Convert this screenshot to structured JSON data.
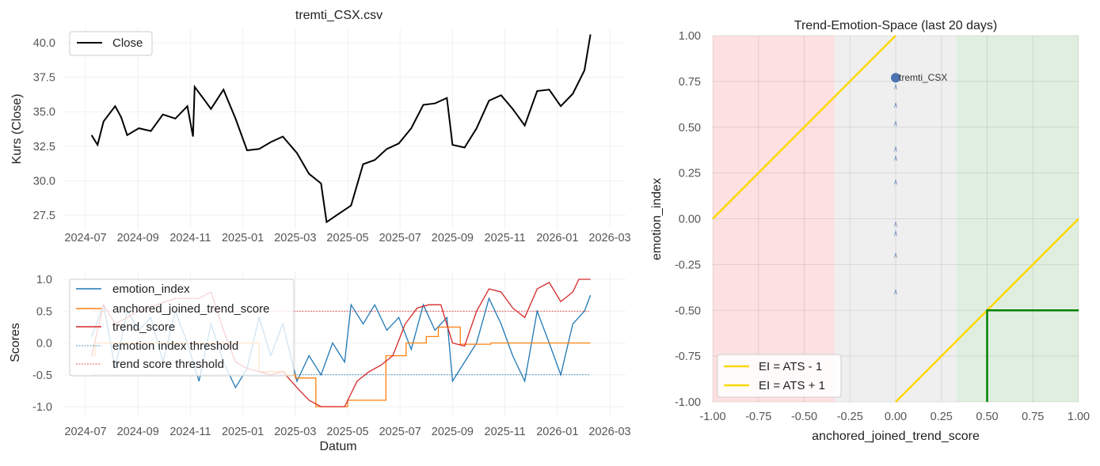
{
  "chart_data": [
    {
      "type": "line",
      "title": "tremti_CSX.csv",
      "xlabel": "",
      "ylabel": "Kurs (Close)",
      "ylim": [
        26.2,
        41.0
      ],
      "yticks": [
        "27.5",
        "30.0",
        "32.5",
        "35.0",
        "37.5",
        "40.0"
      ],
      "xticks": [
        "2024-07",
        "2024-09",
        "2024-11",
        "2025-01",
        "2025-03",
        "2025-05",
        "2025-07",
        "2025-09",
        "2025-11",
        "2026-01",
        "2026-03"
      ],
      "grid": true,
      "legend": "top-left",
      "series": [
        {
          "name": "Close",
          "color": "#000000",
          "x": [
            "2024-07-08",
            "2024-07-15",
            "2024-07-22",
            "2024-08-05",
            "2024-08-12",
            "2024-08-19",
            "2024-09-02",
            "2024-09-16",
            "2024-09-30",
            "2024-10-14",
            "2024-10-28",
            "2024-11-04",
            "2024-11-06",
            "2024-11-18",
            "2024-11-25",
            "2024-12-09",
            "2024-12-23",
            "2025-01-06",
            "2025-01-20",
            "2025-02-03",
            "2025-02-17",
            "2025-03-03",
            "2025-03-17",
            "2025-03-31",
            "2025-04-07",
            "2025-04-21",
            "2025-05-05",
            "2025-05-19",
            "2025-06-02",
            "2025-06-16",
            "2025-06-30",
            "2025-07-14",
            "2025-07-28",
            "2025-08-11",
            "2025-08-25",
            "2025-09-01",
            "2025-09-15",
            "2025-09-29",
            "2025-10-13",
            "2025-10-27",
            "2025-11-10",
            "2025-11-24",
            "2025-12-08",
            "2025-12-22",
            "2026-01-05",
            "2026-01-19",
            "2026-02-02",
            "2026-02-09"
          ],
          "values": [
            33.3,
            32.6,
            34.3,
            35.4,
            34.6,
            33.3,
            33.8,
            33.6,
            34.8,
            34.5,
            35.4,
            33.2,
            36.8,
            35.8,
            35.2,
            36.6,
            34.5,
            32.2,
            32.3,
            32.8,
            33.2,
            32.0,
            30.5,
            29.8,
            27.0,
            27.6,
            28.2,
            31.2,
            31.5,
            32.3,
            32.7,
            33.8,
            35.5,
            35.6,
            36.0,
            32.6,
            32.4,
            33.8,
            35.8,
            36.2,
            35.2,
            34.0,
            36.5,
            36.6,
            35.4,
            36.3,
            38.0,
            40.6
          ]
        }
      ]
    },
    {
      "type": "line",
      "title": "",
      "xlabel": "Datum",
      "ylabel": "Scores",
      "ylim": [
        -1.1,
        1.1
      ],
      "yticks": [
        "-1.0",
        "-0.5",
        "0.0",
        "0.5",
        "1.0"
      ],
      "xticks": [
        "2024-07",
        "2024-09",
        "2024-11",
        "2025-01",
        "2025-03",
        "2025-05",
        "2025-07",
        "2025-09",
        "2025-11",
        "2026-01",
        "2026-03"
      ],
      "grid": true,
      "legend": "top-left",
      "series": [
        {
          "name": "emotion_index",
          "color": "#1f77b4",
          "x": [
            "2024-07-08",
            "2024-07-22",
            "2024-08-05",
            "2024-08-19",
            "2024-09-02",
            "2024-09-16",
            "2024-09-30",
            "2024-10-14",
            "2024-10-28",
            "2024-11-11",
            "2024-11-25",
            "2024-12-09",
            "2024-12-23",
            "2025-01-06",
            "2025-01-20",
            "2025-02-03",
            "2025-02-17",
            "2025-03-03",
            "2025-03-17",
            "2025-03-31",
            "2025-04-14",
            "2025-04-28",
            "2025-05-05",
            "2025-05-19",
            "2025-06-02",
            "2025-06-16",
            "2025-06-30",
            "2025-07-14",
            "2025-07-28",
            "2025-08-11",
            "2025-08-25",
            "2025-09-01",
            "2025-09-15",
            "2025-09-29",
            "2025-10-13",
            "2025-10-27",
            "2025-11-10",
            "2025-11-24",
            "2025-12-08",
            "2025-12-22",
            "2026-01-05",
            "2026-01-19",
            "2026-02-02",
            "2026-02-09"
          ],
          "values": [
            0.1,
            0.6,
            -0.4,
            0.5,
            0.2,
            0.4,
            -0.3,
            0.5,
            0.0,
            -0.6,
            0.3,
            -0.3,
            -0.7,
            -0.4,
            0.4,
            -0.2,
            0.3,
            -0.6,
            -0.2,
            -0.5,
            0.0,
            -0.3,
            0.6,
            0.3,
            0.6,
            0.2,
            0.4,
            -0.1,
            0.6,
            0.2,
            0.4,
            -0.6,
            -0.3,
            0.0,
            0.7,
            0.3,
            -0.2,
            -0.6,
            0.5,
            0.0,
            -0.5,
            0.3,
            0.5,
            0.75
          ]
        },
        {
          "name": "anchored_joined_trend_score",
          "color": "#ff7f0e",
          "step": true,
          "x": [
            "2024-07-08",
            "2024-07-12",
            "2025-01-20",
            "2025-02-20",
            "2025-03-01",
            "2025-03-25",
            "2025-05-01",
            "2025-06-15",
            "2025-07-08",
            "2025-08-01",
            "2025-08-15",
            "2025-09-10",
            "2025-10-15",
            "2026-02-09"
          ],
          "values": [
            -0.2,
            0.0,
            -0.45,
            -0.5,
            -0.55,
            -1.0,
            -0.9,
            -0.2,
            0.0,
            0.1,
            0.25,
            -0.02,
            0.0,
            0.0
          ]
        },
        {
          "name": "trend_score",
          "color": "#d62728",
          "x": [
            "2024-07-08",
            "2024-07-22",
            "2024-08-05",
            "2024-09-02",
            "2024-10-14",
            "2024-11-11",
            "2024-11-25",
            "2024-12-09",
            "2024-12-23",
            "2025-01-06",
            "2025-01-20",
            "2025-02-03",
            "2025-02-17",
            "2025-03-03",
            "2025-03-17",
            "2025-03-31",
            "2025-04-14",
            "2025-04-28",
            "2025-05-12",
            "2025-05-26",
            "2025-06-09",
            "2025-06-23",
            "2025-07-07",
            "2025-07-21",
            "2025-08-04",
            "2025-08-18",
            "2025-09-01",
            "2025-09-15",
            "2025-09-29",
            "2025-10-13",
            "2025-10-27",
            "2025-11-10",
            "2025-11-24",
            "2025-12-08",
            "2025-12-22",
            "2026-01-05",
            "2026-01-19",
            "2026-01-26",
            "2026-02-09"
          ],
          "values": [
            -0.2,
            0.6,
            0.3,
            0.5,
            0.7,
            0.7,
            0.8,
            0.2,
            -0.3,
            -0.4,
            -0.45,
            -0.5,
            -0.45,
            -0.7,
            -0.9,
            -1.0,
            -1.0,
            -1.0,
            -0.6,
            -0.45,
            -0.35,
            -0.2,
            0.3,
            0.55,
            0.6,
            0.6,
            0.0,
            -0.05,
            0.5,
            0.85,
            0.8,
            0.55,
            0.4,
            0.85,
            0.95,
            0.65,
            0.8,
            1.0,
            1.0
          ]
        }
      ],
      "thresholds": [
        {
          "name": "emotion index threshold",
          "color": "#1f77b4",
          "value": -0.5
        },
        {
          "name": "trend score threshold",
          "color": "#d62728",
          "value": 0.5
        }
      ]
    },
    {
      "type": "scatter",
      "title": "Trend-Emotion-Space (last 20 days)",
      "xlabel": "anchored_joined_trend_score",
      "ylabel": "emotion_index",
      "xlim": [
        -1,
        1
      ],
      "ylim": [
        -1,
        1
      ],
      "xticks": [
        "-1.00",
        "-0.75",
        "-0.50",
        "-0.25",
        "0.00",
        "0.25",
        "0.50",
        "0.75",
        "1.00"
      ],
      "yticks": [
        "-1.00",
        "-0.75",
        "-0.50",
        "-0.25",
        "0.00",
        "0.25",
        "0.50",
        "0.75",
        "1.00"
      ],
      "grid": true,
      "legend": "bottom-left",
      "regions": [
        {
          "from": -1,
          "to": -0.333,
          "color": "#fde0e0"
        },
        {
          "from": -0.333,
          "to": 0.333,
          "color": "#efefef"
        },
        {
          "from": 0.333,
          "to": 1,
          "color": "#e0eedf"
        }
      ],
      "current_point": {
        "label": "tremti_CSX",
        "x": 0.0,
        "y": 0.77,
        "color": "#4c72b0"
      },
      "trail": [
        {
          "x": 0.0,
          "y": 0.72
        },
        {
          "x": 0.0,
          "y": 0.62
        },
        {
          "x": 0.0,
          "y": 0.52
        },
        {
          "x": 0.0,
          "y": 0.38
        },
        {
          "x": 0.0,
          "y": 0.33
        },
        {
          "x": 0.0,
          "y": 0.2
        },
        {
          "x": 0.0,
          "y": -0.03
        },
        {
          "x": 0.0,
          "y": -0.08
        },
        {
          "x": 0.0,
          "y": -0.2
        },
        {
          "x": 0.0,
          "y": -0.4
        }
      ],
      "lines": [
        {
          "name": "EI = ATS - 1",
          "color": "#ffd700",
          "slope": 1,
          "intercept": -1
        },
        {
          "name": "EI = ATS + 1",
          "color": "#ffd700",
          "slope": 1,
          "intercept": 1
        }
      ],
      "green_box": {
        "color": "#008000",
        "x": 0.5,
        "y": -0.5
      }
    }
  ]
}
